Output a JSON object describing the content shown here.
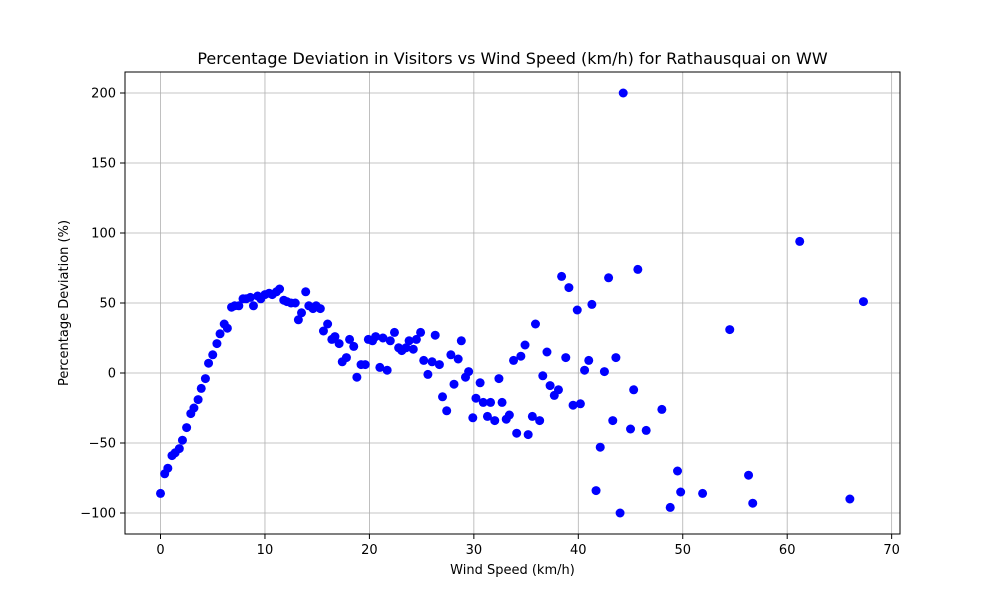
{
  "chart_data": {
    "type": "scatter",
    "title": "Percentage Deviation in Visitors vs Wind Speed (km/h) for Rathausquai on WW",
    "xlabel": "Wind Speed (km/h)",
    "ylabel": "Percentage Deviation (%)",
    "xlim": [
      -3.4,
      70.8
    ],
    "ylim": [
      -115,
      215
    ],
    "x_ticks": [
      0,
      10,
      20,
      30,
      40,
      50,
      60,
      70
    ],
    "y_ticks": [
      -100,
      -50,
      0,
      50,
      100,
      150,
      200
    ],
    "x_tick_labels": [
      "0",
      "10",
      "20",
      "30",
      "40",
      "50",
      "60",
      "70"
    ],
    "y_tick_labels": [
      "−100",
      "−50",
      "0",
      "50",
      "100",
      "150",
      "200"
    ],
    "grid": true,
    "marker_color": "#0000ff",
    "points": [
      {
        "x": 0.0,
        "y": -86
      },
      {
        "x": 0.4,
        "y": -72
      },
      {
        "x": 0.7,
        "y": -68
      },
      {
        "x": 1.1,
        "y": -59
      },
      {
        "x": 1.4,
        "y": -57
      },
      {
        "x": 1.8,
        "y": -54
      },
      {
        "x": 2.1,
        "y": -48
      },
      {
        "x": 2.5,
        "y": -39
      },
      {
        "x": 2.9,
        "y": -29
      },
      {
        "x": 3.2,
        "y": -25
      },
      {
        "x": 3.6,
        "y": -19
      },
      {
        "x": 3.9,
        "y": -11
      },
      {
        "x": 4.3,
        "y": -4
      },
      {
        "x": 4.6,
        "y": 7
      },
      {
        "x": 5.0,
        "y": 13
      },
      {
        "x": 5.4,
        "y": 21
      },
      {
        "x": 5.7,
        "y": 28
      },
      {
        "x": 6.1,
        "y": 35
      },
      {
        "x": 6.4,
        "y": 32
      },
      {
        "x": 6.8,
        "y": 47
      },
      {
        "x": 7.1,
        "y": 48
      },
      {
        "x": 7.5,
        "y": 48
      },
      {
        "x": 7.9,
        "y": 53
      },
      {
        "x": 8.2,
        "y": 53
      },
      {
        "x": 8.6,
        "y": 54
      },
      {
        "x": 8.9,
        "y": 48
      },
      {
        "x": 9.3,
        "y": 55
      },
      {
        "x": 9.6,
        "y": 53
      },
      {
        "x": 10.0,
        "y": 56
      },
      {
        "x": 10.4,
        "y": 57
      },
      {
        "x": 10.7,
        "y": 56
      },
      {
        "x": 11.1,
        "y": 58
      },
      {
        "x": 11.4,
        "y": 60
      },
      {
        "x": 11.8,
        "y": 52
      },
      {
        "x": 12.1,
        "y": 51
      },
      {
        "x": 12.5,
        "y": 50
      },
      {
        "x": 12.9,
        "y": 50
      },
      {
        "x": 13.2,
        "y": 38
      },
      {
        "x": 13.5,
        "y": 43
      },
      {
        "x": 13.9,
        "y": 58
      },
      {
        "x": 14.2,
        "y": 48
      },
      {
        "x": 14.6,
        "y": 46
      },
      {
        "x": 14.9,
        "y": 48
      },
      {
        "x": 15.3,
        "y": 46
      },
      {
        "x": 15.6,
        "y": 30
      },
      {
        "x": 16.0,
        "y": 35
      },
      {
        "x": 16.4,
        "y": 24
      },
      {
        "x": 16.7,
        "y": 26
      },
      {
        "x": 17.1,
        "y": 21
      },
      {
        "x": 17.4,
        "y": 8
      },
      {
        "x": 17.8,
        "y": 11
      },
      {
        "x": 18.1,
        "y": 24
      },
      {
        "x": 18.5,
        "y": 19
      },
      {
        "x": 18.8,
        "y": -3
      },
      {
        "x": 19.2,
        "y": 6
      },
      {
        "x": 19.6,
        "y": 6
      },
      {
        "x": 19.9,
        "y": 24
      },
      {
        "x": 20.3,
        "y": 23
      },
      {
        "x": 20.6,
        "y": 26
      },
      {
        "x": 21.0,
        "y": 4
      },
      {
        "x": 21.3,
        "y": 25
      },
      {
        "x": 21.7,
        "y": 2
      },
      {
        "x": 22.0,
        "y": 23
      },
      {
        "x": 22.4,
        "y": 29
      },
      {
        "x": 22.8,
        "y": 18
      },
      {
        "x": 23.1,
        "y": 16
      },
      {
        "x": 23.5,
        "y": 18
      },
      {
        "x": 23.8,
        "y": 23
      },
      {
        "x": 24.2,
        "y": 17
      },
      {
        "x": 24.5,
        "y": 24
      },
      {
        "x": 24.9,
        "y": 29
      },
      {
        "x": 25.2,
        "y": 9
      },
      {
        "x": 25.6,
        "y": -1
      },
      {
        "x": 26.0,
        "y": 8
      },
      {
        "x": 26.3,
        "y": 27
      },
      {
        "x": 26.7,
        "y": 6
      },
      {
        "x": 27.0,
        "y": -17
      },
      {
        "x": 27.4,
        "y": -27
      },
      {
        "x": 27.8,
        "y": 13
      },
      {
        "x": 28.1,
        "y": -8
      },
      {
        "x": 28.5,
        "y": 10
      },
      {
        "x": 28.8,
        "y": 23
      },
      {
        "x": 29.2,
        "y": -3
      },
      {
        "x": 29.5,
        "y": 1
      },
      {
        "x": 29.9,
        "y": -32
      },
      {
        "x": 30.2,
        "y": -18
      },
      {
        "x": 30.6,
        "y": -7
      },
      {
        "x": 30.9,
        "y": -21
      },
      {
        "x": 31.3,
        "y": -31
      },
      {
        "x": 31.6,
        "y": -21
      },
      {
        "x": 32.0,
        "y": -34
      },
      {
        "x": 32.4,
        "y": -4
      },
      {
        "x": 32.7,
        "y": -21
      },
      {
        "x": 33.1,
        "y": -33
      },
      {
        "x": 33.4,
        "y": -30
      },
      {
        "x": 33.8,
        "y": 9
      },
      {
        "x": 34.1,
        "y": -43
      },
      {
        "x": 34.5,
        "y": 12
      },
      {
        "x": 34.9,
        "y": 20
      },
      {
        "x": 35.2,
        "y": -44
      },
      {
        "x": 35.6,
        "y": -31
      },
      {
        "x": 35.9,
        "y": 35
      },
      {
        "x": 36.3,
        "y": -34
      },
      {
        "x": 36.6,
        "y": -2
      },
      {
        "x": 37.0,
        "y": 15
      },
      {
        "x": 37.3,
        "y": -9
      },
      {
        "x": 37.7,
        "y": -16
      },
      {
        "x": 38.1,
        "y": -12
      },
      {
        "x": 38.4,
        "y": 69
      },
      {
        "x": 38.8,
        "y": 11
      },
      {
        "x": 39.1,
        "y": 61
      },
      {
        "x": 39.5,
        "y": -23
      },
      {
        "x": 39.9,
        "y": 45
      },
      {
        "x": 40.2,
        "y": -22
      },
      {
        "x": 40.6,
        "y": 2
      },
      {
        "x": 41.0,
        "y": 9
      },
      {
        "x": 41.3,
        "y": 49
      },
      {
        "x": 41.7,
        "y": -84
      },
      {
        "x": 42.1,
        "y": -53
      },
      {
        "x": 42.5,
        "y": 1
      },
      {
        "x": 42.9,
        "y": 68
      },
      {
        "x": 43.3,
        "y": -34
      },
      {
        "x": 43.6,
        "y": 11
      },
      {
        "x": 44.0,
        "y": -100
      },
      {
        "x": 44.3,
        "y": 200
      },
      {
        "x": 45.0,
        "y": -40
      },
      {
        "x": 45.3,
        "y": -12
      },
      {
        "x": 45.7,
        "y": 74
      },
      {
        "x": 46.5,
        "y": -41
      },
      {
        "x": 48.0,
        "y": -26
      },
      {
        "x": 48.8,
        "y": -96
      },
      {
        "x": 49.5,
        "y": -70
      },
      {
        "x": 49.8,
        "y": -85
      },
      {
        "x": 51.9,
        "y": -86
      },
      {
        "x": 54.5,
        "y": 31
      },
      {
        "x": 56.3,
        "y": -73
      },
      {
        "x": 56.7,
        "y": -93
      },
      {
        "x": 61.2,
        "y": 94
      },
      {
        "x": 66.0,
        "y": -90
      },
      {
        "x": 67.3,
        "y": 51
      }
    ]
  }
}
